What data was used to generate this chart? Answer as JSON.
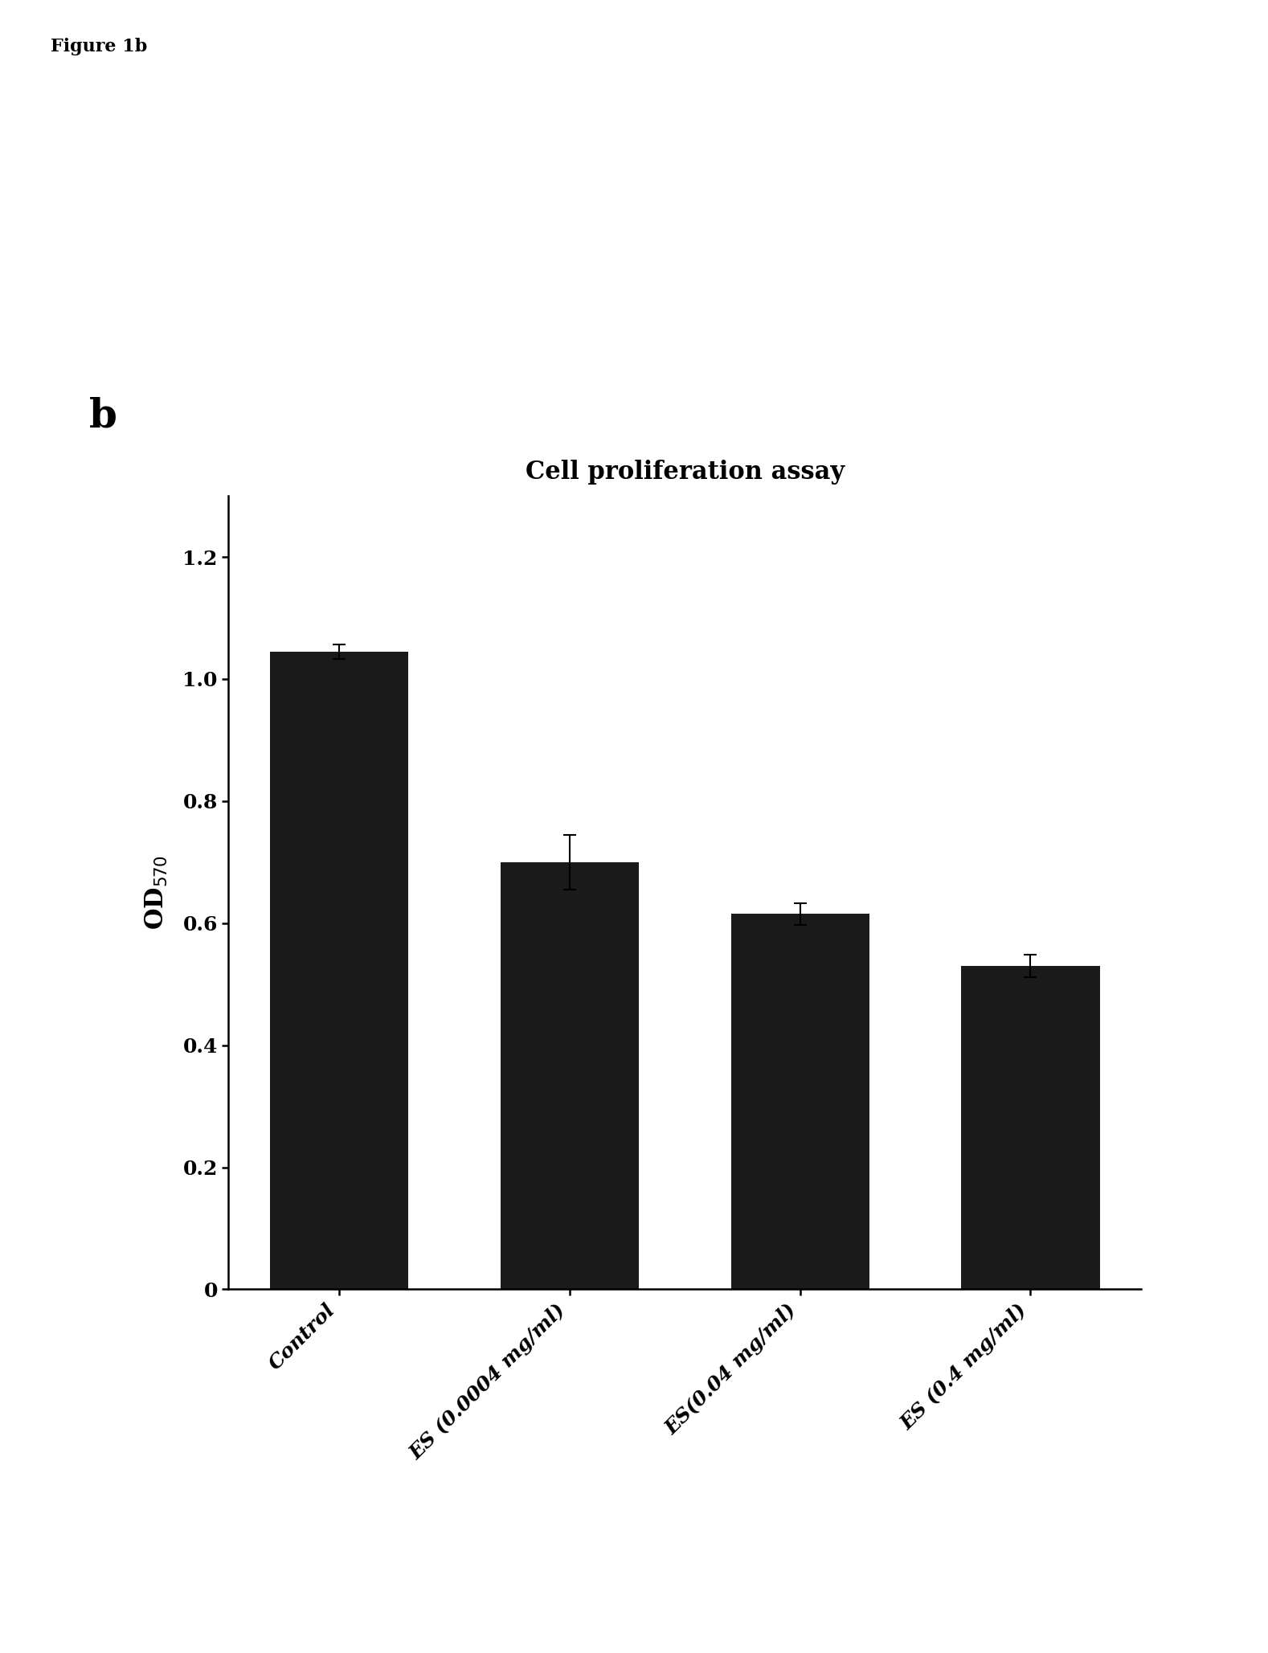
{
  "figure_label": "Figure 1b",
  "panel_label": "b",
  "title": "Cell proliferation assay",
  "categories": [
    "Control",
    "ES (0.0004 mg/ml)",
    "ES(0.04 mg/ml)",
    "ES (0.4 mg/ml)"
  ],
  "values": [
    1.045,
    0.7,
    0.615,
    0.53
  ],
  "errors": [
    0.012,
    0.045,
    0.018,
    0.018
  ],
  "bar_color": "#1a1a1a",
  "ylabel": "OD$_{570}$",
  "ylim": [
    0,
    1.3
  ],
  "yticks": [
    0,
    0.2,
    0.4,
    0.6,
    0.8,
    1.0,
    1.2
  ],
  "background_color": "#ffffff",
  "title_fontsize": 22,
  "label_fontsize": 20,
  "tick_fontsize": 18,
  "panel_label_fontsize": 36,
  "figure_label_fontsize": 16,
  "bar_width": 0.6
}
